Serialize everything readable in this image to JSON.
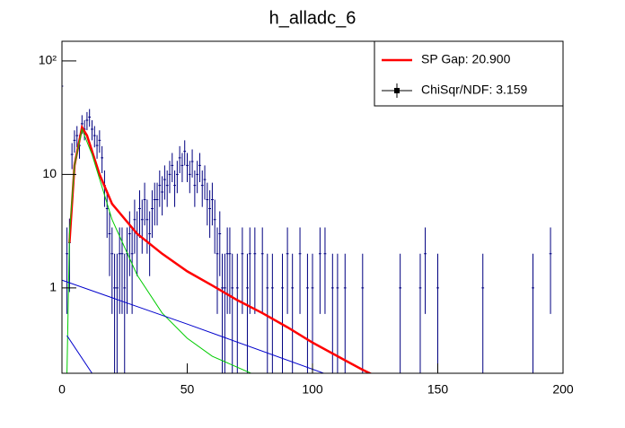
{
  "chart_data": {
    "type": "errorbar",
    "title": "h_alladc_6",
    "log_y": true,
    "legend": "top-right",
    "xlim": [
      0,
      200
    ],
    "xticks": [
      0,
      50,
      100,
      150,
      200
    ],
    "ylim": [
      0.177,
      149
    ],
    "yticks": [
      1,
      10,
      {
        "value": 100,
        "label": "10²"
      }
    ],
    "series": [
      {
        "name": "ChiSqr/NDF: 3.159",
        "color": "#000080",
        "x": [
          0,
          2,
          3,
          4,
          5,
          6,
          7,
          8,
          9,
          10,
          11,
          12,
          13,
          14,
          15,
          16,
          17,
          18,
          19,
          20,
          21,
          22,
          23,
          24,
          25,
          26,
          27,
          28,
          29,
          30,
          31,
          32,
          33,
          34,
          35,
          36,
          37,
          38,
          39,
          40,
          41,
          42,
          43,
          44,
          45,
          46,
          47,
          48,
          49,
          50,
          51,
          52,
          53,
          54,
          55,
          56,
          57,
          58,
          59,
          60,
          61,
          62,
          63,
          64,
          65,
          66,
          67,
          68,
          70,
          72,
          74,
          75,
          77,
          80,
          82,
          84,
          88,
          90,
          92,
          95,
          98,
          100,
          103,
          105,
          108,
          110,
          113,
          120,
          135,
          143,
          145,
          150,
          168,
          188,
          195
        ],
        "values": [
          60,
          2,
          2.5,
          15,
          20,
          22,
          18,
          28,
          25,
          30,
          32,
          25,
          22,
          18,
          20,
          14,
          8,
          5,
          3,
          2,
          1,
          1,
          2,
          2,
          1,
          2,
          3,
          2,
          4,
          3,
          5,
          4,
          6,
          4,
          3,
          5,
          6,
          6,
          8,
          7,
          9,
          8,
          10,
          12,
          8,
          10,
          14,
          12,
          16,
          12,
          10,
          13,
          8,
          10,
          12,
          8,
          9,
          6,
          5,
          6,
          4,
          2,
          3,
          1,
          1,
          2,
          2,
          1,
          1,
          2,
          1,
          2,
          2,
          2,
          1,
          1,
          1,
          2,
          1,
          2,
          1,
          1,
          2,
          2,
          1,
          1,
          1,
          1,
          1,
          1,
          2,
          1,
          1,
          1,
          2
        ],
        "errors": [
          7.75,
          1.41,
          1.58,
          3.87,
          4.47,
          4.69,
          4.24,
          5.29,
          5,
          5.48,
          5.66,
          5,
          4.69,
          4.24,
          4.47,
          3.74,
          2.83,
          2.24,
          1.73,
          1.41,
          1,
          1,
          1.41,
          1.41,
          1,
          1.41,
          1.73,
          1.41,
          2,
          1.73,
          2.24,
          2,
          2.45,
          2,
          1.73,
          2.24,
          2.45,
          2.45,
          2.83,
          2.65,
          3,
          2.83,
          3.16,
          3.46,
          2.83,
          3.16,
          3.74,
          3.46,
          4,
          3.46,
          3.16,
          3.61,
          2.83,
          3.16,
          3.46,
          2.83,
          3,
          2.45,
          2.24,
          2.45,
          2,
          1.41,
          1.73,
          1,
          1,
          1.41,
          1.41,
          1,
          1,
          1.41,
          1,
          1.41,
          1.41,
          1.41,
          1,
          1,
          1,
          1.41,
          1,
          1.41,
          1,
          1,
          1.41,
          1.41,
          1,
          1,
          1,
          1,
          1,
          1,
          1.41,
          1,
          1,
          1,
          1.41
        ]
      },
      {
        "name": "SP Gap: 20.900",
        "color": "#ff0000",
        "x": [
          3,
          5,
          8,
          10,
          15,
          20,
          30,
          40,
          50,
          60,
          70,
          80,
          90,
          100,
          110,
          120,
          127
        ],
        "values": [
          2.5,
          12,
          26,
          22,
          10,
          5.5,
          3,
          2,
          1.4,
          1.05,
          0.78,
          0.6,
          0.45,
          0.33,
          0.25,
          0.19,
          0.16
        ]
      },
      {
        "color": "#00cc00",
        "x": [
          2,
          3,
          5,
          8,
          12,
          20,
          30,
          40,
          50,
          60,
          70,
          80
        ],
        "values": [
          0.177,
          3,
          12,
          25,
          15,
          4,
          1.3,
          0.6,
          0.36,
          0.25,
          0.2,
          0.16
        ]
      },
      {
        "color": "#0000cc",
        "x": [
          0,
          50,
          110
        ],
        "values": [
          1.17,
          0.48,
          0.16
        ]
      },
      {
        "color": "#0000cc",
        "x": [
          2,
          12
        ],
        "values": [
          0.38,
          0.177
        ]
      }
    ]
  }
}
